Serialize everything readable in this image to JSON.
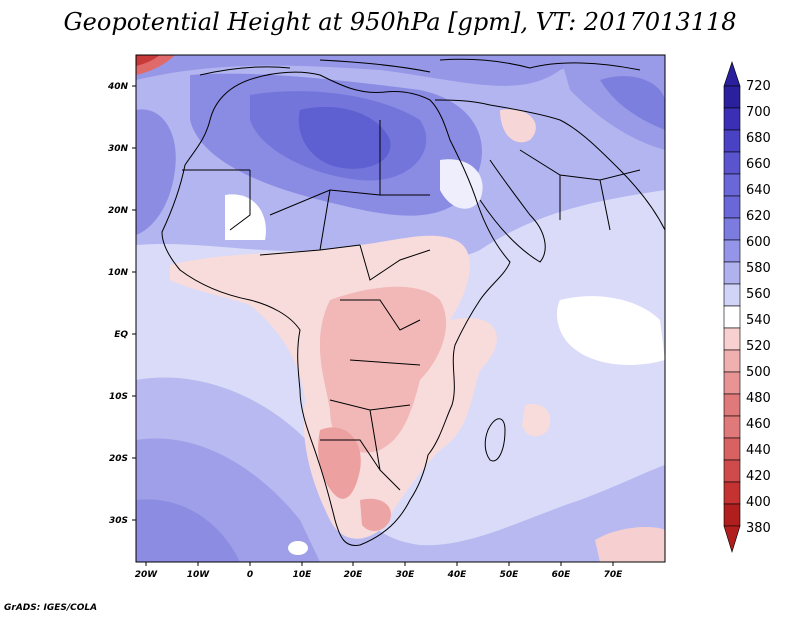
{
  "title": "Geopotential Height at 950hPa [gpm], VT: 2017013118",
  "credit": "GrADS: IGES/COLA",
  "map": {
    "region": "Africa and Arabian Peninsula",
    "variable": "Geopotential Height",
    "level": "950hPa",
    "units": "gpm",
    "valid_time": "2017013118",
    "lon_range": [
      -22,
      80
    ],
    "lat_range": [
      -37,
      45
    ],
    "lon_ticks": [
      "20W",
      "10W",
      "0",
      "10E",
      "20E",
      "30E",
      "40E",
      "50E",
      "60E",
      "70E"
    ],
    "lat_ticks": [
      "40N",
      "30N",
      "20N",
      "10N",
      "EQ",
      "10S",
      "20S",
      "30S"
    ]
  },
  "colorbar": {
    "levels": [
      "720",
      "700",
      "680",
      "660",
      "640",
      "620",
      "600",
      "580",
      "560",
      "540",
      "520",
      "500",
      "480",
      "460",
      "440",
      "420",
      "400",
      "380"
    ],
    "colors": [
      "#2a1f9c",
      "#3b30b5",
      "#4a42c4",
      "#5a55cf",
      "#6a68d8",
      "#7c7ce0",
      "#9494e8",
      "#b0b2f0",
      "#d2d4f7",
      "#ffffff",
      "#f8d0d0",
      "#f0b0b0",
      "#e89494",
      "#e07a7a",
      "#d86262",
      "#cf4a4a",
      "#c43232",
      "#b01e1e"
    ]
  }
}
